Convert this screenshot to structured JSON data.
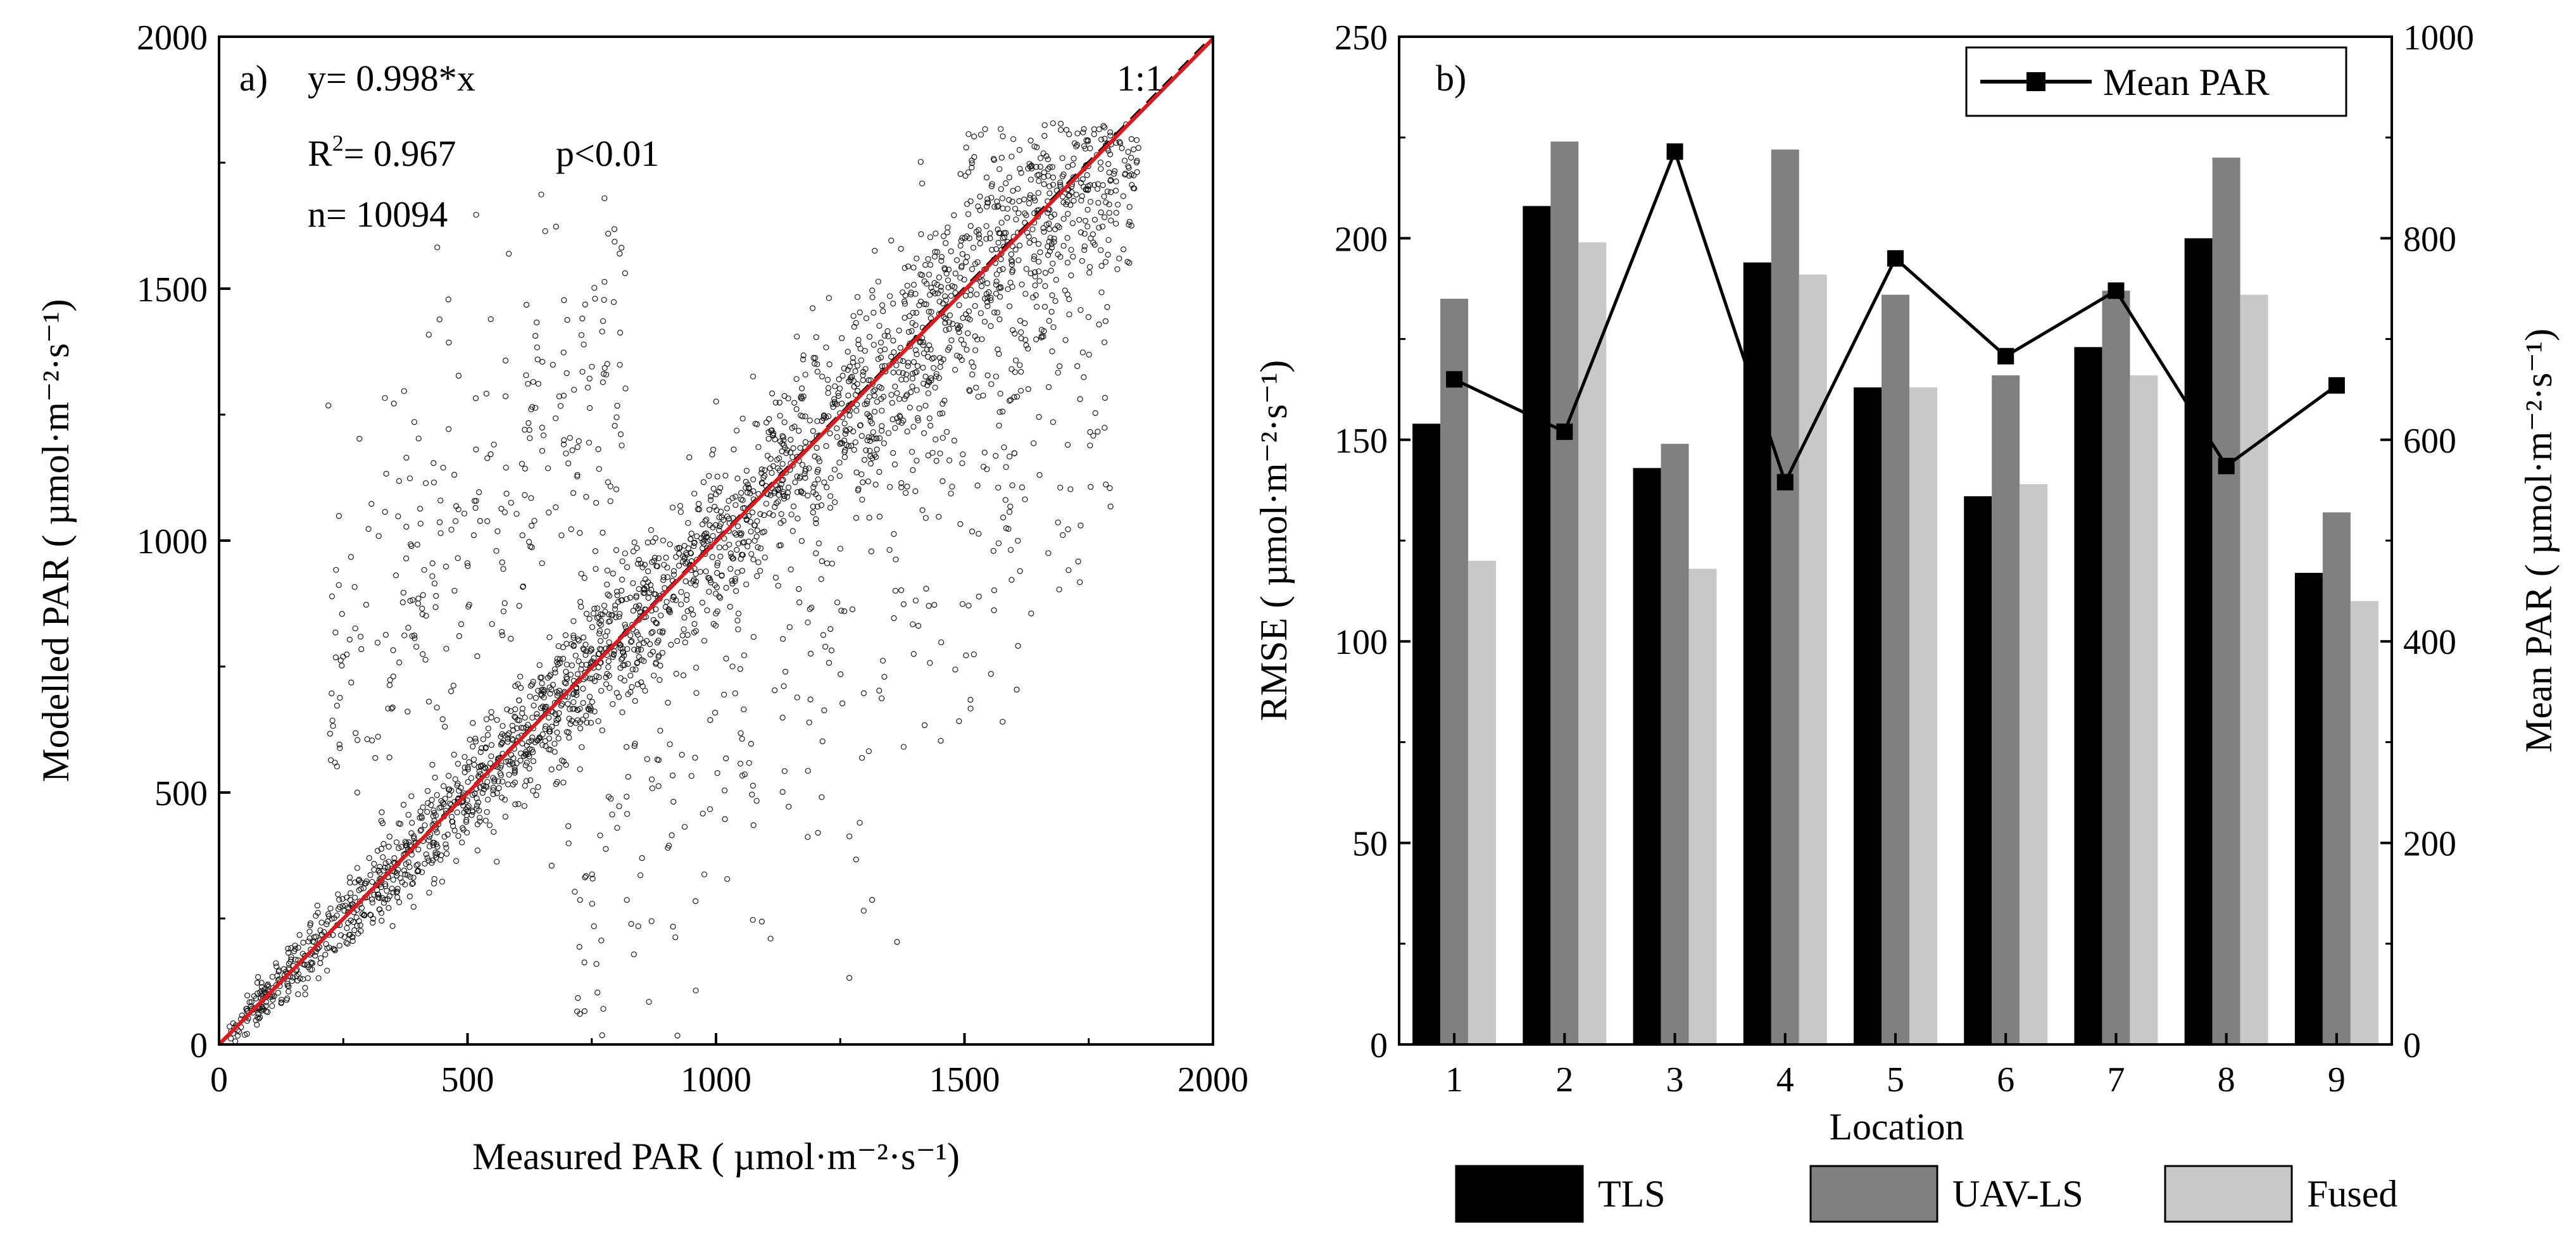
{
  "chart_data": [
    {
      "panel_label": "a)",
      "type": "scatter",
      "xlabel": "Measured PAR ( µmol·m⁻²·s⁻¹)",
      "ylabel": "Modelled PAR ( µmol·m⁻²·s⁻¹)",
      "xlim": [
        0,
        2000
      ],
      "ylim": [
        0,
        2000
      ],
      "xticks": [
        0,
        500,
        1000,
        1500,
        2000
      ],
      "yticks": [
        0,
        500,
        1000,
        1500,
        2000
      ],
      "grid": false,
      "annotations": {
        "equation": "y= 0.998*x",
        "r2_prefix": "R",
        "r2_exp": "2",
        "r2_value": "= 0.967",
        "pvalue": "p<0.01",
        "n": "n= 10094",
        "one_to_one": "1:1"
      },
      "fit_line": {
        "slope": 0.998,
        "color": "#e0191e",
        "style": "solid"
      },
      "identity_line": {
        "slope": 1.0,
        "color": "#000000",
        "style": "dashed"
      },
      "points_shown": 10094,
      "point_density_profile": [
        {
          "x": 30,
          "y": 30
        },
        {
          "x": 100,
          "y": 100
        },
        {
          "x": 250,
          "y": 330
        },
        {
          "x": 350,
          "y": 500
        },
        {
          "x": 500,
          "y": 500
        },
        {
          "x": 700,
          "y": 700
        },
        {
          "x": 900,
          "y": 880
        },
        {
          "x": 1100,
          "y": 1100
        },
        {
          "x": 1300,
          "y": 1300
        },
        {
          "x": 1500,
          "y": 1480
        },
        {
          "x": 1650,
          "y": 1620
        },
        {
          "x": 1800,
          "y": 1680
        }
      ]
    },
    {
      "panel_label": "b)",
      "type": "bar",
      "xlabel": "Location",
      "ylabel": "RMSE ( µmol·m⁻²·s⁻¹)",
      "ylabel_right": "Mean PAR ( µmol·m⁻²·s⁻¹)",
      "categories": [
        "1",
        "2",
        "3",
        "4",
        "5",
        "6",
        "7",
        "8",
        "9"
      ],
      "ylim": [
        0,
        250
      ],
      "yticks": [
        0,
        50,
        100,
        150,
        200,
        250
      ],
      "ylim_right": [
        0,
        1000
      ],
      "yticks_right": [
        0,
        200,
        400,
        600,
        800,
        1000
      ],
      "grid": false,
      "series": [
        {
          "name": "TLS",
          "color": "#000000",
          "values": [
            154,
            208,
            143,
            194,
            163,
            136,
            173,
            200,
            117
          ]
        },
        {
          "name": "UAV-LS",
          "color": "#808080",
          "values": [
            185,
            224,
            149,
            222,
            186,
            166,
            187,
            220,
            132
          ]
        },
        {
          "name": "Fused",
          "color": "#c8c8c8",
          "values": [
            120,
            199,
            118,
            191,
            163,
            139,
            166,
            186,
            110
          ]
        }
      ],
      "line_series": {
        "name": "Mean PAR",
        "axis": "right",
        "color": "#000000",
        "marker": "square",
        "values": [
          660,
          608,
          886,
          558,
          780,
          683,
          748,
          574,
          654
        ]
      },
      "legend_placement": {
        "line": "top-right",
        "bars": "below-axis"
      }
    }
  ]
}
